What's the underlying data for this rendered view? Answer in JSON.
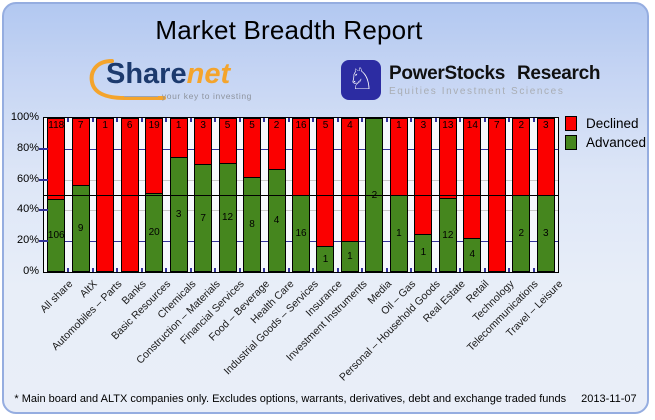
{
  "header": {
    "title": "Market Breadth Report"
  },
  "logos": {
    "sharenet": {
      "text_primary": "Share",
      "text_accent": "net",
      "tagline": "your key to investing",
      "accent_color": "#f4a42c",
      "primary_color": "#1c3a6e"
    },
    "powerstocks": {
      "name": "PowerStocks  Research",
      "tagline": "Equities Investment Sciences",
      "icon": "knight-icon",
      "icon_bg": "#2c2ca2"
    }
  },
  "chart_data": {
    "type": "bar",
    "stacked_percent": true,
    "categories": [
      "All share",
      "AltX",
      "Automobiles – Parts",
      "Banks",
      "Basic Resources",
      "Chemicals",
      "Construction – Materials",
      "Financial Services",
      "Food – Beverage",
      "Health Care",
      "Industrial Goods – Services",
      "Insurance",
      "Investment Instruments",
      "Media",
      "Oil – Gas",
      "Personal – Household Goods",
      "Real Estate",
      "Retail",
      "Technology",
      "Telecommunications",
      "Travel – Leisure"
    ],
    "series": [
      {
        "name": "Declined",
        "color": "#fb0000",
        "values": [
          118,
          7,
          1,
          6,
          19,
          1,
          3,
          5,
          5,
          2,
          16,
          5,
          4,
          0,
          1,
          3,
          13,
          14,
          7,
          2,
          3
        ]
      },
      {
        "name": "Advanced",
        "color": "#45861e",
        "values": [
          106,
          9,
          0,
          0,
          20,
          3,
          7,
          12,
          8,
          4,
          16,
          1,
          1,
          2,
          1,
          1,
          12,
          4,
          0,
          2,
          3
        ]
      }
    ],
    "ylim": [
      0,
      100
    ],
    "y_ticks": [
      "100%",
      "80%",
      "60%",
      "40%",
      "20%",
      "0%"
    ],
    "gridlines": [
      {
        "pct": 80,
        "color": "#333399"
      },
      {
        "pct": 60,
        "color": "#c9c9c9"
      },
      {
        "pct": 40,
        "color": "#c9c9c9"
      },
      {
        "pct": 20,
        "color": "#333399"
      }
    ],
    "reference_line": {
      "pct": 50,
      "color": "#000000"
    },
    "legend_position": "top-right",
    "grid": true
  },
  "footer": {
    "note": "* Main board and ALTX companies only. Excludes options, warrants, derivatives, debt and exchange traded funds",
    "date": "2013-11-07"
  }
}
